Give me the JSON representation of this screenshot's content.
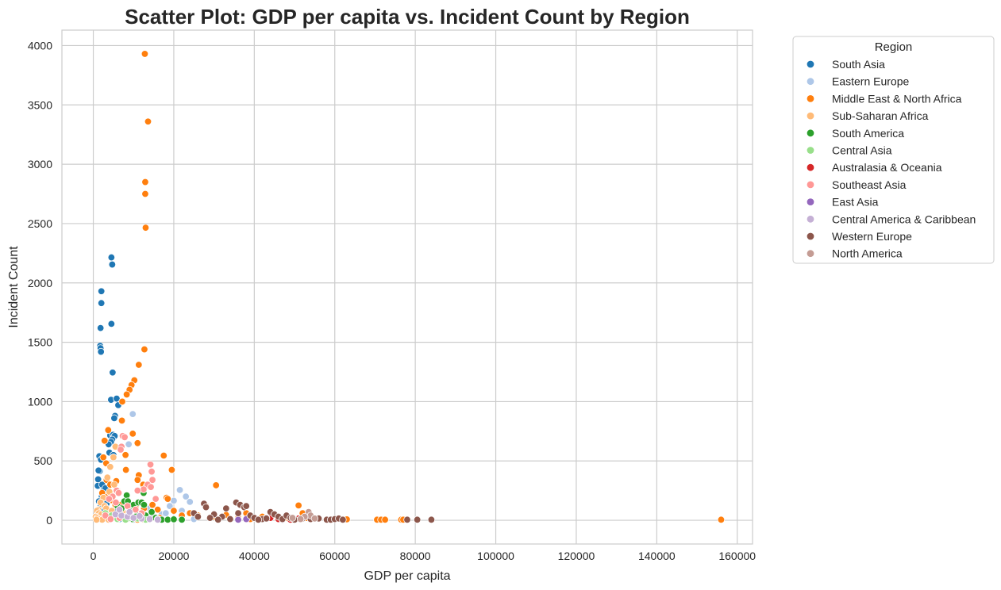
{
  "chart_data": {
    "type": "scatter",
    "title": "Scatter Plot: GDP per capita vs. Incident Count by Region",
    "xlabel": "GDP per capita",
    "ylabel": "Incident Count",
    "xlim": [
      -7800,
      163800
    ],
    "ylim": [
      -200,
      4130
    ],
    "xticks": [
      0,
      20000,
      40000,
      60000,
      80000,
      100000,
      120000,
      140000,
      160000
    ],
    "yticks": [
      0,
      500,
      1000,
      1500,
      2000,
      2500,
      3000,
      3500,
      4000
    ],
    "grid": true,
    "legend_title": "Region",
    "legend_position": "outside-right-top",
    "series": [
      {
        "name": "South Asia",
        "color": "#1f77b4",
        "points": [
          [
            2000,
            1930
          ],
          [
            2000,
            1830
          ],
          [
            1800,
            1620
          ],
          [
            1700,
            1470
          ],
          [
            1800,
            1450
          ],
          [
            1900,
            1420
          ],
          [
            4500,
            2215
          ],
          [
            4700,
            2155
          ],
          [
            4500,
            1655
          ],
          [
            4800,
            1245
          ],
          [
            4400,
            1015
          ],
          [
            5800,
            1025
          ],
          [
            6200,
            970
          ],
          [
            5400,
            880
          ],
          [
            5200,
            860
          ],
          [
            4200,
            715
          ],
          [
            4900,
            720
          ],
          [
            5100,
            700
          ],
          [
            5300,
            710
          ],
          [
            4700,
            680
          ],
          [
            4400,
            660
          ],
          [
            3800,
            640
          ],
          [
            4000,
            570
          ],
          [
            5000,
            550
          ],
          [
            1500,
            540
          ],
          [
            1900,
            510
          ],
          [
            1600,
            415
          ],
          [
            1300,
            420
          ],
          [
            1200,
            345
          ],
          [
            1100,
            290
          ],
          [
            2200,
            300
          ],
          [
            2500,
            250
          ],
          [
            3000,
            270
          ],
          [
            2100,
            200
          ],
          [
            1400,
            160
          ],
          [
            2600,
            170
          ],
          [
            2900,
            150
          ],
          [
            3300,
            140
          ],
          [
            1800,
            120
          ],
          [
            2300,
            80
          ],
          [
            4100,
            60
          ],
          [
            5600,
            90
          ],
          [
            3600,
            30
          ],
          [
            2700,
            20
          ],
          [
            7800,
            40
          ],
          [
            6500,
            10
          ]
        ]
      },
      {
        "name": "Eastern Europe",
        "color": "#aec7e8",
        "points": [
          [
            9800,
            895
          ],
          [
            8800,
            640
          ],
          [
            21500,
            255
          ],
          [
            23000,
            200
          ],
          [
            24000,
            155
          ],
          [
            20000,
            165
          ],
          [
            19000,
            120
          ],
          [
            22000,
            80
          ],
          [
            17000,
            50
          ],
          [
            15000,
            30
          ],
          [
            12000,
            20
          ],
          [
            25000,
            10
          ],
          [
            10000,
            5
          ],
          [
            14000,
            100
          ],
          [
            26000,
            40
          ],
          [
            18000,
            60
          ],
          [
            11000,
            15
          ],
          [
            13500,
            8
          ]
        ]
      },
      {
        "name": "Middle East & North Africa",
        "color": "#ff7f0e",
        "points": [
          [
            12800,
            3930
          ],
          [
            13600,
            3360
          ],
          [
            12900,
            2850
          ],
          [
            12900,
            2750
          ],
          [
            13000,
            2465
          ],
          [
            12700,
            1440
          ],
          [
            11300,
            1310
          ],
          [
            10200,
            1180
          ],
          [
            9500,
            1140
          ],
          [
            9000,
            1100
          ],
          [
            8300,
            1060
          ],
          [
            7200,
            1000
          ],
          [
            7100,
            840
          ],
          [
            11000,
            650
          ],
          [
            9800,
            730
          ],
          [
            8000,
            550
          ],
          [
            17500,
            545
          ],
          [
            19500,
            425
          ],
          [
            8100,
            425
          ],
          [
            11300,
            380
          ],
          [
            11000,
            340
          ],
          [
            12400,
            300
          ],
          [
            13300,
            290
          ],
          [
            30500,
            295
          ],
          [
            3700,
            760
          ],
          [
            2800,
            670
          ],
          [
            2500,
            530
          ],
          [
            3200,
            480
          ],
          [
            3300,
            340
          ],
          [
            5700,
            330
          ],
          [
            4200,
            300
          ],
          [
            2200,
            230
          ],
          [
            3500,
            200
          ],
          [
            4500,
            170
          ],
          [
            5500,
            130
          ],
          [
            6800,
            130
          ],
          [
            9000,
            120
          ],
          [
            10500,
            110
          ],
          [
            12600,
            100
          ],
          [
            14700,
            130
          ],
          [
            16000,
            90
          ],
          [
            18200,
            190
          ],
          [
            18500,
            180
          ],
          [
            20000,
            80
          ],
          [
            22000,
            40
          ],
          [
            24000,
            60
          ],
          [
            26000,
            40
          ],
          [
            28000,
            120
          ],
          [
            30000,
            30
          ],
          [
            33000,
            45
          ],
          [
            36000,
            20
          ],
          [
            39000,
            10
          ],
          [
            42000,
            30
          ],
          [
            46000,
            25
          ],
          [
            51000,
            125
          ],
          [
            52000,
            60
          ],
          [
            53000,
            20
          ],
          [
            63000,
            8
          ],
          [
            70500,
            5
          ],
          [
            71500,
            5
          ],
          [
            72500,
            5
          ],
          [
            76500,
            5
          ],
          [
            77000,
            5
          ],
          [
            156000,
            5
          ],
          [
            11000,
            5
          ],
          [
            12200,
            10
          ],
          [
            16500,
            20
          ],
          [
            38000,
            60
          ],
          [
            48500,
            15
          ],
          [
            5000,
            40
          ],
          [
            7500,
            60
          ]
        ]
      },
      {
        "name": "Sub-Saharan Africa",
        "color": "#ffbb78",
        "points": [
          [
            5500,
            620
          ],
          [
            5000,
            530
          ],
          [
            4200,
            450
          ],
          [
            3500,
            360
          ],
          [
            5200,
            300
          ],
          [
            6000,
            250
          ],
          [
            4000,
            240
          ],
          [
            2500,
            190
          ],
          [
            1800,
            150
          ],
          [
            2800,
            120
          ],
          [
            3200,
            100
          ],
          [
            1200,
            90
          ],
          [
            900,
            80
          ],
          [
            1400,
            60
          ],
          [
            2000,
            50
          ],
          [
            3000,
            40
          ],
          [
            600,
            30
          ],
          [
            1000,
            20
          ],
          [
            1600,
            10
          ],
          [
            2200,
            5
          ],
          [
            4600,
            80
          ],
          [
            6800,
            70
          ],
          [
            7400,
            50
          ],
          [
            8000,
            30
          ],
          [
            9500,
            20
          ],
          [
            11500,
            15
          ],
          [
            13000,
            10
          ],
          [
            800,
            5
          ],
          [
            3800,
            5
          ]
        ]
      },
      {
        "name": "South America",
        "color": "#2ca02c",
        "points": [
          [
            8300,
            210
          ],
          [
            12500,
            230
          ],
          [
            7700,
            160
          ],
          [
            8600,
            160
          ],
          [
            10000,
            130
          ],
          [
            11200,
            150
          ],
          [
            12000,
            150
          ],
          [
            12600,
            130
          ],
          [
            6000,
            120
          ],
          [
            7000,
            100
          ],
          [
            9000,
            80
          ],
          [
            11000,
            60
          ],
          [
            13000,
            40
          ],
          [
            14500,
            70
          ],
          [
            15500,
            20
          ],
          [
            16000,
            10
          ],
          [
            17000,
            5
          ],
          [
            18500,
            5
          ],
          [
            20000,
            8
          ],
          [
            22000,
            5
          ],
          [
            9700,
            10
          ],
          [
            8800,
            15
          ],
          [
            10500,
            30
          ]
        ]
      },
      {
        "name": "Central Asia",
        "color": "#98df8a",
        "points": [
          [
            3000,
            60
          ],
          [
            4500,
            40
          ],
          [
            9000,
            20
          ],
          [
            11000,
            15
          ],
          [
            6000,
            10
          ],
          [
            8000,
            5
          ],
          [
            13000,
            5
          ]
        ]
      },
      {
        "name": "Australasia & Oceania",
        "color": "#d62728",
        "points": [
          [
            46000,
            10
          ],
          [
            49000,
            5
          ],
          [
            44000,
            20
          ],
          [
            51000,
            15
          ]
        ]
      },
      {
        "name": "Southeast Asia",
        "color": "#ff9896",
        "points": [
          [
            7300,
            710
          ],
          [
            7800,
            700
          ],
          [
            7000,
            620
          ],
          [
            6800,
            595
          ],
          [
            14200,
            470
          ],
          [
            14500,
            410
          ],
          [
            14700,
            340
          ],
          [
            13500,
            300
          ],
          [
            14300,
            280
          ],
          [
            12500,
            260
          ],
          [
            11000,
            250
          ],
          [
            5800,
            250
          ],
          [
            6300,
            230
          ],
          [
            4800,
            200
          ],
          [
            3900,
            180
          ],
          [
            5600,
            150
          ],
          [
            8500,
            120
          ],
          [
            10500,
            90
          ],
          [
            12000,
            60
          ],
          [
            15500,
            180
          ],
          [
            3000,
            40
          ],
          [
            6500,
            20
          ],
          [
            9300,
            30
          ],
          [
            4300,
            10
          ]
        ]
      },
      {
        "name": "East Asia",
        "color": "#9467bd",
        "points": [
          [
            36000,
            5
          ],
          [
            43000,
            20
          ],
          [
            38000,
            10
          ],
          [
            47000,
            5
          ]
        ]
      },
      {
        "name": "Central America & Caribbean",
        "color": "#c5b0d5",
        "points": [
          [
            5500,
            50
          ],
          [
            7000,
            40
          ],
          [
            8500,
            30
          ],
          [
            10000,
            20
          ],
          [
            12000,
            15
          ],
          [
            14000,
            10
          ],
          [
            16000,
            5
          ],
          [
            9000,
            70
          ],
          [
            6500,
            90
          ],
          [
            11500,
            35
          ]
        ]
      },
      {
        "name": "Western Europe",
        "color": "#8c564b",
        "points": [
          [
            27500,
            140
          ],
          [
            28000,
            110
          ],
          [
            33000,
            100
          ],
          [
            35500,
            150
          ],
          [
            36500,
            130
          ],
          [
            37500,
            110
          ],
          [
            38000,
            120
          ],
          [
            36000,
            60
          ],
          [
            39000,
            40
          ],
          [
            40000,
            20
          ],
          [
            42000,
            10
          ],
          [
            44000,
            70
          ],
          [
            45000,
            50
          ],
          [
            46000,
            30
          ],
          [
            47000,
            10
          ],
          [
            48000,
            40
          ],
          [
            49000,
            20
          ],
          [
            50000,
            5
          ],
          [
            52000,
            15
          ],
          [
            54000,
            10
          ],
          [
            56000,
            15
          ],
          [
            58000,
            5
          ],
          [
            59000,
            5
          ],
          [
            60000,
            10
          ],
          [
            61000,
            15
          ],
          [
            62000,
            5
          ],
          [
            30000,
            50
          ],
          [
            32000,
            30
          ],
          [
            34000,
            10
          ],
          [
            41000,
            5
          ],
          [
            43000,
            15
          ],
          [
            78000,
            5
          ],
          [
            80500,
            5
          ],
          [
            84000,
            5
          ],
          [
            25000,
            60
          ],
          [
            26000,
            30
          ],
          [
            29000,
            20
          ],
          [
            31000,
            5
          ]
        ]
      },
      {
        "name": "North America",
        "color": "#c49c94",
        "points": [
          [
            53500,
            70
          ],
          [
            54000,
            40
          ],
          [
            52500,
            30
          ],
          [
            49500,
            20
          ],
          [
            51500,
            10
          ],
          [
            55000,
            15
          ]
        ]
      }
    ]
  }
}
